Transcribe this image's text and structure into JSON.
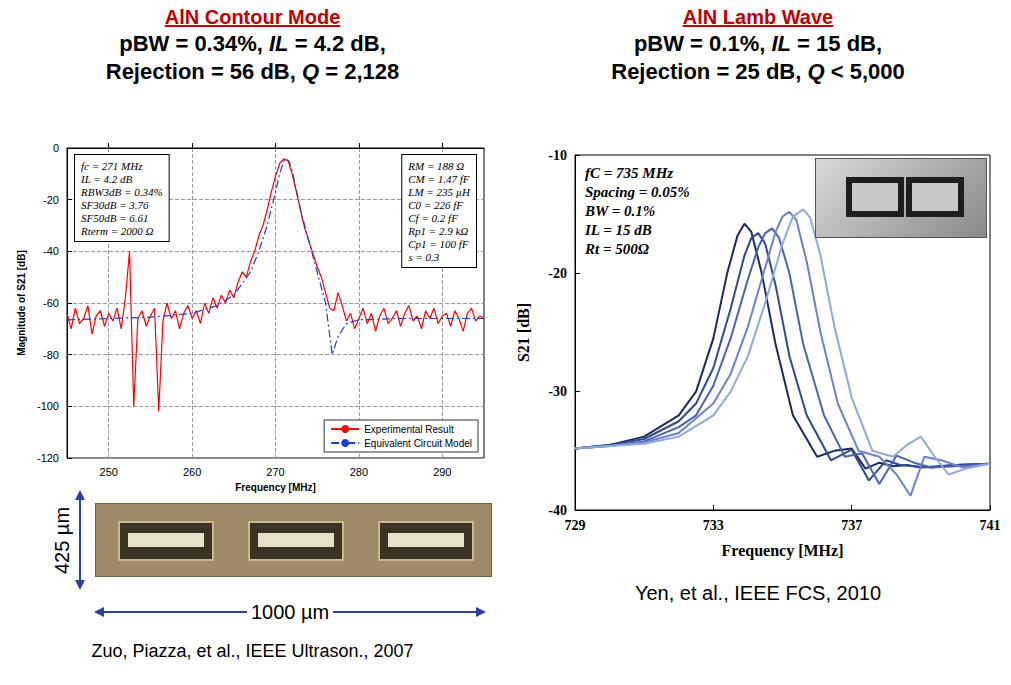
{
  "chart_data": [
    {
      "type": "line",
      "title": "AlN Contour Mode",
      "subtitle": [
        "pBW = 0.34%, IL = 4.2 dB,",
        "Rejection = 56 dB, Q = 2,128"
      ],
      "x_label": "Frequency [MHz]",
      "y_label": "Magnitude of S21 [dB]",
      "xlim": [
        245,
        295
      ],
      "xticks": [
        250,
        260,
        270,
        280,
        290
      ],
      "ylim": [
        -120,
        0
      ],
      "yticks": [
        -120,
        -100,
        -80,
        -60,
        -40,
        -20,
        0
      ],
      "grid": true,
      "legend": "lower right",
      "annotations": [
        [
          "fc = 271 MHz",
          "IL = 4.2 dB",
          "RBW3dB = 0.34%",
          "SF30dB = 3.76",
          "SF50dB = 6.61",
          "Rterm = 2000 Ω"
        ],
        [
          "RM = 188 Ω",
          "CM = 1.47 fF",
          "LM = 235 µH",
          "C0 = 226 fF",
          "Cf = 0.2 fF",
          "Rp1 = 2.9 kΩ",
          "Cp1 = 100 fF",
          "s = 0.3"
        ]
      ],
      "series": [
        {
          "name": "Experimental Result",
          "color": "#ff0000",
          "line_style": "solid",
          "x": [
            245,
            245.5,
            246,
            246.5,
            247,
            247.5,
            248,
            248.5,
            249,
            249.5,
            250,
            250.5,
            251,
            251.5,
            252,
            252.5,
            253,
            253.5,
            254,
            254.5,
            255,
            255.5,
            256,
            256.5,
            257,
            257.5,
            258,
            258.5,
            259,
            259.5,
            260,
            260.5,
            261,
            261.5,
            262,
            262.5,
            263,
            263.5,
            264,
            264.5,
            265,
            265.5,
            266,
            266.5,
            267,
            267.5,
            268,
            268.5,
            269,
            269.5,
            270,
            270.5,
            271,
            271.5,
            272,
            272.5,
            273,
            273.5,
            274,
            274.5,
            275,
            275.5,
            276,
            276.5,
            277,
            277.5,
            278,
            278.5,
            279,
            279.5,
            280,
            280.5,
            281,
            281.5,
            282,
            282.5,
            283,
            283.5,
            284,
            284.5,
            285,
            285.5,
            286,
            286.5,
            287,
            287.5,
            288,
            288.5,
            289,
            289.5,
            290,
            290.5,
            291,
            291.5,
            292,
            292.5,
            293,
            293.5,
            294,
            294.5,
            295
          ],
          "values": [
            -64,
            -70,
            -62,
            -68,
            -66,
            -61,
            -72,
            -65,
            -63,
            -69,
            -64,
            -67,
            -62,
            -70,
            -58,
            -40,
            -100,
            -66,
            -63,
            -69,
            -65,
            -62,
            -102,
            -67,
            -60,
            -66,
            -63,
            -70,
            -64,
            -61,
            -66,
            -63,
            -68,
            -60,
            -64,
            -58,
            -62,
            -57,
            -60,
            -55,
            -58,
            -52,
            -48,
            -50,
            -44,
            -40,
            -34,
            -30,
            -24,
            -17,
            -11,
            -6,
            -4.2,
            -5,
            -10,
            -17,
            -24,
            -31,
            -36,
            -41,
            -46,
            -50,
            -56,
            -62,
            -63,
            -56,
            -61,
            -67,
            -64,
            -70,
            -66,
            -62,
            -68,
            -64,
            -71,
            -65,
            -62,
            -68,
            -66,
            -63,
            -69,
            -64,
            -61,
            -67,
            -65,
            -70,
            -63,
            -66,
            -62,
            -68,
            -65,
            -64,
            -69,
            -63,
            -66,
            -71,
            -64,
            -62,
            -67,
            -65,
            -66
          ]
        },
        {
          "name": "Equivalent Circuit Model",
          "color": "#1f3fd0",
          "line_style": "dashdot",
          "x": [
            245,
            250,
            255,
            260,
            263,
            265,
            267,
            268,
            269,
            270,
            270.5,
            271,
            271.3,
            271.6,
            272,
            272.5,
            273,
            274,
            275,
            276,
            276.8,
            277.5,
            278.5,
            280,
            285,
            290,
            295
          ],
          "values": [
            -66.5,
            -66,
            -65.5,
            -64,
            -61,
            -57,
            -48,
            -40,
            -30,
            -17,
            -10,
            -5,
            -4.2,
            -5,
            -9,
            -16,
            -24,
            -36,
            -48,
            -60,
            -80,
            -73,
            -68,
            -66.5,
            -66,
            -66,
            -66
          ]
        }
      ],
      "image_labels": [
        "425 µm",
        "1000 µm"
      ],
      "source": "Zuo, Piazza, et al., IEEE Ultrason., 2007"
    },
    {
      "type": "line",
      "title": "AlN Lamb Wave",
      "subtitle": [
        "pBW = 0.1%, IL = 15 dB,",
        "Rejection = 25 dB, Q < 5,000"
      ],
      "x_label": "Frequency [MHz]",
      "y_label": "S21 [dB]",
      "xlim": [
        729,
        741
      ],
      "xticks": [
        729,
        733,
        737,
        741
      ],
      "ylim": [
        -40,
        -10
      ],
      "yticks": [
        -40,
        -30,
        -20,
        -10
      ],
      "grid": false,
      "annotations": [
        [
          "fC = 735 MHz",
          "Spacing = 0.05%",
          "BW = 0.1%",
          "IL = 15 dB",
          "Rt = 500Ω"
        ]
      ],
      "series": [
        {
          "color": "#1a2a5e",
          "line_style": "solid",
          "x": [
            729,
            730,
            731,
            732,
            732.5,
            733,
            733.4,
            733.7,
            733.9,
            734.1,
            734.4,
            734.8,
            735.3,
            736,
            736.5,
            737,
            737.4,
            737.8,
            738.2,
            738.6,
            739,
            740,
            741
          ],
          "values": [
            -34.8,
            -34.5,
            -33.8,
            -32,
            -30,
            -25.5,
            -20,
            -16.8,
            -15.8,
            -16.5,
            -20,
            -26,
            -32,
            -35.5,
            -35,
            -34.8,
            -36.5,
            -36,
            -36.3,
            -36.2,
            -36.4,
            -36.2,
            -36.1
          ]
        },
        {
          "color": "#2e4a8f",
          "line_style": "solid",
          "x": [
            729,
            730,
            731,
            732,
            732.5,
            733,
            733.5,
            733.9,
            734.1,
            734.3,
            734.5,
            734.8,
            735.2,
            735.7,
            736.4,
            737,
            737.5,
            738,
            738.4,
            738.8,
            739.3,
            740,
            741
          ],
          "values": [
            -34.8,
            -34.5,
            -34,
            -32.5,
            -31,
            -28,
            -23,
            -18.5,
            -17,
            -16.6,
            -17.5,
            -21,
            -27,
            -32,
            -35.8,
            -34.9,
            -37.5,
            -35.8,
            -36.2,
            -36.3,
            -36.4,
            -36.2,
            -36.1
          ]
        },
        {
          "color": "#4a62b0",
          "line_style": "solid",
          "x": [
            729,
            730,
            731,
            732,
            732.5,
            733,
            733.5,
            734,
            734.3,
            734.5,
            734.7,
            734.9,
            735.2,
            735.6,
            736.2,
            736.8,
            737.3,
            737.8,
            738.3,
            738.8,
            739.3,
            740,
            741
          ],
          "values": [
            -34.8,
            -34.6,
            -34.2,
            -33,
            -32,
            -29.5,
            -25.5,
            -20.5,
            -17.8,
            -16.6,
            -16.2,
            -17,
            -20,
            -26,
            -32,
            -35.5,
            -35.2,
            -37.8,
            -35.4,
            -36,
            -36.4,
            -36.3,
            -36.1
          ]
        },
        {
          "color": "#7080cc",
          "line_style": "solid",
          "x": [
            729,
            730,
            731,
            732,
            733,
            733.5,
            734,
            734.5,
            734.8,
            735,
            735.2,
            735.4,
            735.7,
            736.1,
            736.6,
            737.2,
            737.8,
            738.3,
            738.7,
            739.1,
            739.6,
            740.2,
            741
          ],
          "values": [
            -34.8,
            -34.6,
            -34.3,
            -33.5,
            -31,
            -28.5,
            -24.5,
            -19.5,
            -16.5,
            -15.2,
            -14.8,
            -15.5,
            -19,
            -25,
            -31,
            -35,
            -35.5,
            -37,
            -38.8,
            -35.5,
            -35.8,
            -36.4,
            -36.1
          ]
        },
        {
          "color": "#8fa8e0",
          "line_style": "solid",
          "x": [
            729,
            730,
            731,
            732,
            733,
            733.5,
            734,
            734.5,
            735,
            735.3,
            735.6,
            735.8,
            736.1,
            736.5,
            737,
            737.6,
            738.2,
            738.6,
            739,
            739.4,
            739.8,
            740.3,
            741
          ],
          "values": [
            -34.8,
            -34.6,
            -34.4,
            -33.8,
            -32,
            -30,
            -27,
            -22.5,
            -17.5,
            -15.2,
            -14.6,
            -15.3,
            -18.5,
            -24.5,
            -30.5,
            -35,
            -35.5,
            -34.5,
            -33.8,
            -35.5,
            -37,
            -36.5,
            -36.1
          ]
        }
      ],
      "source": "Yen, et al., IEEE FCS, 2010"
    }
  ]
}
